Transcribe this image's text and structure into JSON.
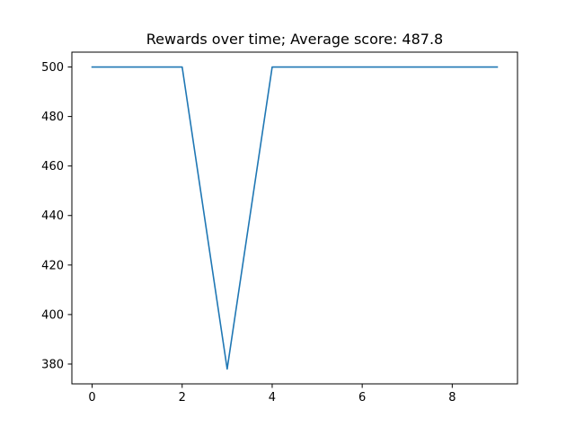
{
  "chart_data": {
    "type": "line",
    "title": "Rewards over time; Average score: 487.8",
    "xlabel": "",
    "ylabel": "",
    "x": [
      0,
      1,
      2,
      3,
      4,
      5,
      6,
      7,
      8,
      9
    ],
    "series": [
      {
        "values": [
          500,
          500,
          500,
          378,
          500,
          500,
          500,
          500,
          500,
          500
        ]
      }
    ],
    "xlim": [
      -0.45,
      9.45
    ],
    "ylim": [
      372,
      506
    ],
    "xticks": [
      0,
      2,
      4,
      6,
      8
    ],
    "yticks": [
      380,
      400,
      420,
      440,
      460,
      480,
      500
    ],
    "grid": false,
    "line_color": "#1f77b4"
  }
}
